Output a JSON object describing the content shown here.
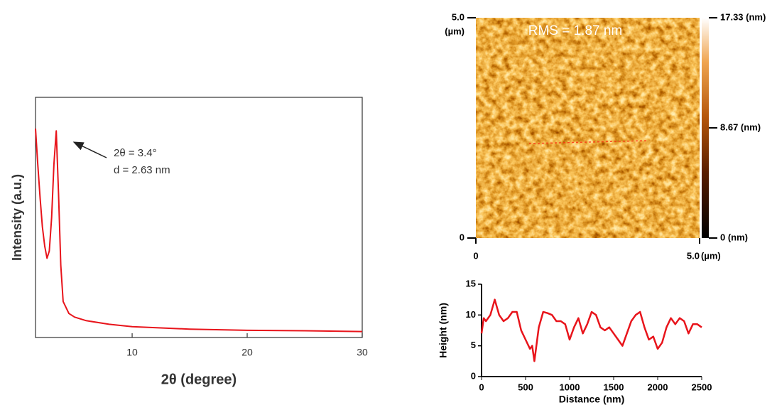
{
  "chart_data": [
    {
      "type": "line",
      "ylabel": "Intensity (a.u.)",
      "xlabel": "2θ (degree)",
      "annotations": [
        "2θ = 3.4°",
        "d = 2.63 nm"
      ],
      "x": [
        1.6,
        1.8,
        2.0,
        2.2,
        2.4,
        2.6,
        2.8,
        3.0,
        3.2,
        3.4,
        3.6,
        3.8,
        4.0,
        4.5,
        5,
        6,
        8,
        10,
        15,
        20,
        25,
        30
      ],
      "series": [
        {
          "color": "#e8141b",
          "values": [
            0.87,
            0.72,
            0.58,
            0.46,
            0.38,
            0.33,
            0.36,
            0.5,
            0.72,
            0.86,
            0.6,
            0.3,
            0.15,
            0.1,
            0.085,
            0.07,
            0.055,
            0.045,
            0.035,
            0.03,
            0.028,
            0.025
          ]
        }
      ],
      "xlim": [
        1.6,
        30
      ],
      "xticks": [
        10,
        20,
        30
      ],
      "ylim": [
        0,
        1
      ]
    },
    {
      "type": "image",
      "annotation": "RMS = 1.87 nm",
      "xlim": [
        0,
        5
      ],
      "xticks": [
        0,
        {
          "value": 5,
          "label": "5.0"
        }
      ],
      "xlabel": "(µm)",
      "ylim": [
        0,
        5
      ],
      "yticks": [
        0,
        {
          "value": 5,
          "label": "5.0"
        }
      ],
      "ylabel": "(µm)",
      "colorbar": {
        "clim": [
          0,
          17.33
        ],
        "ticks": [
          {
            "value": 0,
            "label": "0 (nm)"
          },
          {
            "value": 8.67,
            "label": "8.67 (nm)"
          },
          {
            "value": 17.33,
            "label": "17.33 (nm)"
          }
        ]
      }
    },
    {
      "type": "line",
      "xlabel": "Distance (nm)",
      "ylabel": "Height (nm)",
      "x": [
        0,
        25,
        50,
        100,
        150,
        200,
        250,
        300,
        350,
        400,
        450,
        500,
        550,
        575,
        600,
        650,
        700,
        750,
        800,
        850,
        900,
        950,
        1000,
        1050,
        1100,
        1150,
        1200,
        1250,
        1300,
        1350,
        1400,
        1450,
        1500,
        1550,
        1600,
        1650,
        1700,
        1750,
        1800,
        1850,
        1900,
        1950,
        2000,
        2050,
        2100,
        2150,
        2200,
        2250,
        2300,
        2350,
        2400,
        2450,
        2500
      ],
      "series": [
        {
          "color": "#e8141b",
          "values": [
            7,
            9.5,
            9,
            10,
            12.5,
            10,
            9,
            9.5,
            10.5,
            10.5,
            7.5,
            6,
            4.5,
            5,
            2.5,
            8,
            10.5,
            10.3,
            10,
            9,
            9,
            8.5,
            6,
            8,
            9.5,
            7,
            8.5,
            10.5,
            10,
            8,
            7.5,
            8,
            7,
            6,
            5,
            7,
            9,
            10,
            10.5,
            8,
            6,
            6.5,
            4.5,
            5.5,
            8,
            9.5,
            8.5,
            9.5,
            9,
            7,
            8.5,
            8.5,
            8
          ]
        }
      ],
      "xlim": [
        0,
        2500
      ],
      "xticks": [
        0,
        500,
        1000,
        1500,
        2000,
        2500
      ],
      "ylim": [
        0,
        15
      ],
      "yticks": [
        0,
        5,
        10,
        15
      ]
    }
  ]
}
